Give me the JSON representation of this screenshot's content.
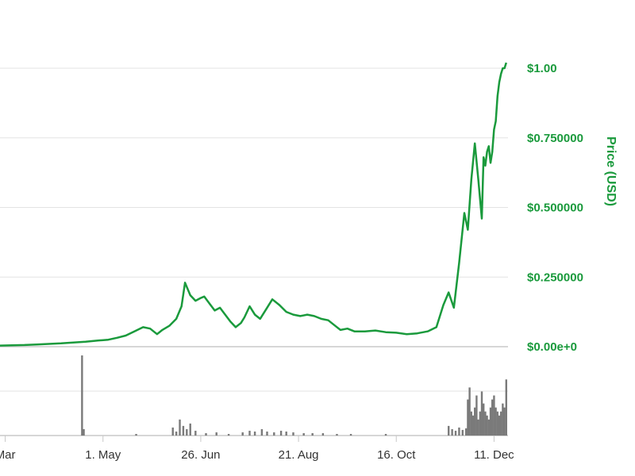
{
  "chart_data": {
    "type": "line",
    "title": "",
    "ylabel": "Price (USD)",
    "ylim": [
      0,
      1.0
    ],
    "y_ticks": [
      {
        "value": 0,
        "label": "$0.00e+0"
      },
      {
        "value": 0.25,
        "label": "$0.250000"
      },
      {
        "value": 0.5,
        "label": "$0.500000"
      },
      {
        "value": 0.75,
        "label": "$0.750000"
      },
      {
        "value": 1.0,
        "label": "$1.00"
      }
    ],
    "x_ticks": [
      {
        "date": "2017-03-06",
        "label": "Mar"
      },
      {
        "date": "2017-05-01",
        "label": "1. May"
      },
      {
        "date": "2017-06-26",
        "label": "26. Jun"
      },
      {
        "date": "2017-08-21",
        "label": "21. Aug"
      },
      {
        "date": "2017-10-16",
        "label": "16. Oct"
      },
      {
        "date": "2017-12-11",
        "label": "11. Dec"
      }
    ],
    "xlim": [
      "2017-03-03",
      "2017-12-19"
    ],
    "grid": true,
    "series": [
      {
        "name": "",
        "color": "#1a9a3c",
        "x": [
          "2017-03-03",
          "2017-03-10",
          "2017-03-17",
          "2017-03-24",
          "2017-03-31",
          "2017-04-07",
          "2017-04-14",
          "2017-04-21",
          "2017-04-28",
          "2017-05-04",
          "2017-05-09",
          "2017-05-14",
          "2017-05-19",
          "2017-05-24",
          "2017-05-28",
          "2017-06-01",
          "2017-06-04",
          "2017-06-08",
          "2017-06-12",
          "2017-06-15",
          "2017-06-17",
          "2017-06-20",
          "2017-06-23",
          "2017-06-26",
          "2017-06-28",
          "2017-07-01",
          "2017-07-04",
          "2017-07-07",
          "2017-07-10",
          "2017-07-13",
          "2017-07-16",
          "2017-07-19",
          "2017-07-21",
          "2017-07-24",
          "2017-07-27",
          "2017-07-30",
          "2017-08-02",
          "2017-08-06",
          "2017-08-10",
          "2017-08-14",
          "2017-08-18",
          "2017-08-22",
          "2017-08-26",
          "2017-08-30",
          "2017-09-03",
          "2017-09-07",
          "2017-09-11",
          "2017-09-14",
          "2017-09-18",
          "2017-09-22",
          "2017-09-28",
          "2017-10-04",
          "2017-10-10",
          "2017-10-16",
          "2017-10-22",
          "2017-10-28",
          "2017-11-03",
          "2017-11-08",
          "2017-11-12",
          "2017-11-15",
          "2017-11-18",
          "2017-11-21",
          "2017-11-24",
          "2017-11-26",
          "2017-11-28",
          "2017-11-30",
          "2017-12-02",
          "2017-12-04",
          "2017-12-05",
          "2017-12-06",
          "2017-12-07",
          "2017-12-08",
          "2017-12-09",
          "2017-12-10",
          "2017-12-11",
          "2017-12-12",
          "2017-12-13",
          "2017-12-14",
          "2017-12-15",
          "2017-12-16",
          "2017-12-17",
          "2017-12-18"
        ],
        "values": [
          0.004,
          0.005,
          0.006,
          0.008,
          0.01,
          0.012,
          0.015,
          0.018,
          0.022,
          0.025,
          0.032,
          0.04,
          0.055,
          0.07,
          0.065,
          0.045,
          0.06,
          0.075,
          0.1,
          0.145,
          0.23,
          0.185,
          0.165,
          0.175,
          0.18,
          0.155,
          0.13,
          0.14,
          0.115,
          0.09,
          0.07,
          0.085,
          0.105,
          0.145,
          0.115,
          0.1,
          0.13,
          0.17,
          0.15,
          0.125,
          0.115,
          0.11,
          0.115,
          0.11,
          0.1,
          0.095,
          0.075,
          0.06,
          0.065,
          0.055,
          0.055,
          0.058,
          0.052,
          0.05,
          0.045,
          0.048,
          0.055,
          0.07,
          0.15,
          0.195,
          0.14,
          0.3,
          0.48,
          0.42,
          0.6,
          0.73,
          0.6,
          0.46,
          0.68,
          0.65,
          0.7,
          0.72,
          0.66,
          0.7,
          0.78,
          0.81,
          0.9,
          0.95,
          0.98,
          1.0,
          1.0,
          1.02
        ]
      }
    ],
    "volume": {
      "color": "#7a7a7a",
      "x": [
        "2017-04-19",
        "2017-04-20",
        "2017-05-20",
        "2017-06-10",
        "2017-06-12",
        "2017-06-14",
        "2017-06-16",
        "2017-06-18",
        "2017-06-20",
        "2017-06-23",
        "2017-06-29",
        "2017-07-05",
        "2017-07-12",
        "2017-07-20",
        "2017-07-24",
        "2017-07-27",
        "2017-07-31",
        "2017-08-03",
        "2017-08-07",
        "2017-08-11",
        "2017-08-14",
        "2017-08-18",
        "2017-08-24",
        "2017-08-29",
        "2017-09-04",
        "2017-09-12",
        "2017-09-20",
        "2017-10-10",
        "2017-11-15",
        "2017-11-17",
        "2017-11-19",
        "2017-11-21",
        "2017-11-23",
        "2017-11-25",
        "2017-11-26",
        "2017-11-27",
        "2017-11-28",
        "2017-11-29",
        "2017-11-30",
        "2017-12-01",
        "2017-12-02",
        "2017-12-03",
        "2017-12-04",
        "2017-12-05",
        "2017-12-06",
        "2017-12-07",
        "2017-12-08",
        "2017-12-09",
        "2017-12-10",
        "2017-12-11",
        "2017-12-12",
        "2017-12-13",
        "2017-12-14",
        "2017-12-15",
        "2017-12-16",
        "2017-12-17",
        "2017-12-18"
      ],
      "values": [
        100,
        8,
        2,
        10,
        5,
        20,
        12,
        8,
        15,
        6,
        3,
        4,
        2,
        4,
        6,
        5,
        8,
        5,
        4,
        6,
        5,
        4,
        3,
        3,
        3,
        2,
        2,
        2,
        12,
        8,
        6,
        10,
        7,
        9,
        45,
        60,
        30,
        25,
        35,
        50,
        20,
        30,
        55,
        40,
        30,
        25,
        20,
        35,
        45,
        50,
        35,
        30,
        25,
        30,
        40,
        35,
        70
      ]
    }
  }
}
